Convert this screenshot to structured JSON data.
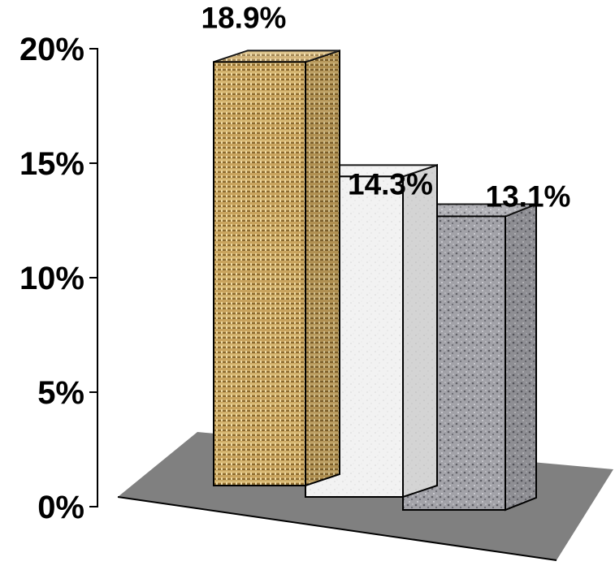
{
  "chart_data": {
    "type": "bar",
    "three_d": true,
    "title": "",
    "xlabel": "",
    "ylabel": "",
    "ylim": [
      0,
      20
    ],
    "yticks": [
      0,
      5,
      10,
      15,
      20
    ],
    "ytick_labels": [
      "0%",
      "5%",
      "10%",
      "15%",
      "20%"
    ],
    "grid": false,
    "legend": "none",
    "floor_color": "#808080",
    "values": [
      18.9,
      14.3,
      13.1
    ],
    "value_labels": [
      "18.9%",
      "14.3%",
      "13.1%"
    ],
    "bars": [
      {
        "texture": "woven-fabric-icon",
        "color": "#c9a45e"
      },
      {
        "texture": "white-paper-icon",
        "color": "#f0f0f0"
      },
      {
        "texture": "granite-icon",
        "color": "#9a9aa0"
      }
    ]
  }
}
